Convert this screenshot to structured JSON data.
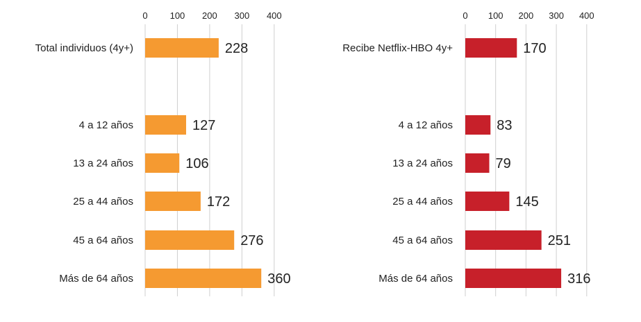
{
  "chart_data": [
    {
      "type": "bar",
      "orientation": "horizontal",
      "categories": [
        "Total individuos (4y+)",
        "4 a 12 años",
        "13 a 24 años",
        "25 a 44 años",
        "45 a 64 años",
        "Más de 64 años"
      ],
      "values": [
        228,
        127,
        106,
        172,
        276,
        360
      ],
      "color": "#f59a31",
      "xlim": [
        0,
        400
      ],
      "xticks": [
        "0",
        "100",
        "200",
        "300",
        "400"
      ],
      "grid": true
    },
    {
      "type": "bar",
      "orientation": "horizontal",
      "categories": [
        "Recibe Netflix-HBO 4y+",
        "4 a 12 años",
        "13 a 24 años",
        "25 a 44 años",
        "45 a 64 años",
        "Más de 64 años"
      ],
      "values": [
        170,
        83,
        79,
        145,
        251,
        316
      ],
      "color": "#c7202a",
      "xlim": [
        0,
        400
      ],
      "xticks": [
        "0",
        "100",
        "200",
        "300",
        "400"
      ],
      "grid": true
    }
  ]
}
